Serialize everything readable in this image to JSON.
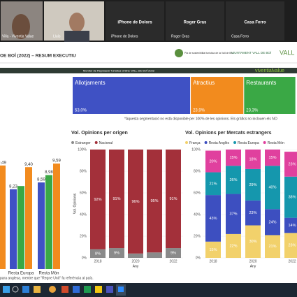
{
  "call": {
    "tiles": [
      {
        "label": "Villa - Viventia Value"
      },
      {
        "label": "Lluís"
      },
      {
        "name": "iPhone de Dolors",
        "label": "iPhone de Dolors"
      },
      {
        "name": "Roger Gras",
        "label": "Roger Gras"
      },
      {
        "name": "Casa Ferro",
        "label": "Casa Ferro"
      }
    ]
  },
  "report": {
    "title": "OE BOÍ (2022) – RESUM EXECUTIU",
    "logos": [
      "Pla de sostenibilitat turística de la Vall de Boí",
      "AJUNTAMENT VALL DE BOÍ",
      "VALL"
    ],
    "banner": "Monitor de Reputació Turística Online VALL DE BOÍ 2022",
    "brand": "viventialvalue",
    "note": "*Aquesta segmentació no està disponible per 100% de les opinions. Els gràfics no inclouen els NO",
    "footer_note": "para anglesa, mentre que \"Regne Unit\" fa referència al país."
  },
  "chart_data": [
    {
      "type": "treemap",
      "categories": [
        "Allotjaments",
        "Atractius",
        "Restaurants"
      ],
      "values": [
        53.0,
        23.9,
        23.3
      ],
      "value_labels": [
        "53,0%",
        "23,9%",
        "23,3%"
      ],
      "colors": [
        "#3f51c4",
        "#f28b1e",
        "#3aa845"
      ]
    },
    {
      "type": "grouped_bar",
      "categories": [
        null,
        "Resta Europa",
        "Resta Món"
      ],
      "ylim": [
        4,
        10
      ],
      "series": [
        {
          "color": "#3f51c4",
          "values": [
            null,
            8.23,
            8.59
          ],
          "value_labels": [
            null,
            "8,23",
            "8,59"
          ]
        },
        {
          "color": "#3aa845",
          "values": [
            null,
            8.4,
            8.98
          ],
          "value_labels": [
            null,
            null,
            "8,98"
          ]
        },
        {
          "color": "#f28b1e",
          "values": [
            9.49,
            9.4,
            9.59
          ],
          "value_labels": [
            "9,49",
            "9,40",
            "9,59"
          ]
        }
      ]
    },
    {
      "type": "stacked_bar",
      "title": "Vol. Opinions per origen",
      "y_label": "Vol. Opinions",
      "x_label": "Any",
      "categories": [
        "2018",
        null,
        "2020",
        null,
        "2022"
      ],
      "ylim": [
        0,
        100
      ],
      "yticks": [
        {
          "value": 0,
          "label": "0%"
        },
        {
          "value": 20,
          "label": "20%"
        },
        {
          "value": 40,
          "label": "40%"
        },
        {
          "value": 60,
          "label": "60%"
        },
        {
          "value": 80,
          "label": "80%"
        },
        {
          "value": 100,
          "label": "100%"
        }
      ],
      "series": [
        {
          "name": "Estranger",
          "color": "#8a8a8a",
          "values": [
            8,
            9,
            4,
            5,
            9
          ],
          "value_labels": [
            "8%",
            "9%",
            null,
            null,
            "9%"
          ]
        },
        {
          "name": "Nacional",
          "color": "#a3303a",
          "values": [
            92,
            91,
            96,
            95,
            91
          ],
          "value_labels": [
            "92%",
            "91%",
            "96%",
            "95%",
            "91%"
          ]
        }
      ]
    },
    {
      "type": "stacked_bar",
      "title": "Vol. Opinions per Mercats estrangers",
      "x_label": "Any",
      "categories": [
        "2018",
        null,
        "2020",
        null,
        "2022"
      ],
      "ylim": [
        0,
        100
      ],
      "yticks": [
        {
          "value": 0,
          "label": "0%"
        },
        {
          "value": 20,
          "label": "20%"
        },
        {
          "value": 40,
          "label": "40%"
        },
        {
          "value": 60,
          "label": "60%"
        },
        {
          "value": 80,
          "label": "80%"
        },
        {
          "value": 100,
          "label": "100%"
        }
      ],
      "series": [
        {
          "name": "França",
          "color": "#f2d16b",
          "values": [
            15,
            22,
            30,
            21,
            23
          ],
          "value_labels": [
            "15%",
            "22%",
            "30%",
            "21%",
            "23%"
          ]
        },
        {
          "name": "Resta Anglès",
          "color": "#3d4fc0",
          "values": [
            43,
            37,
            23,
            24,
            14
          ],
          "value_labels": [
            "43%",
            "37%",
            "23%",
            "24%",
            "14%"
          ]
        },
        {
          "name": "Resta Europa",
          "color": "#1597ad",
          "values": [
            21,
            26,
            29,
            40,
            38
          ],
          "value_labels": [
            "21%",
            "26%",
            "29%",
            "40%",
            "38%"
          ]
        },
        {
          "name": "Resta Món",
          "color": "#e0409e",
          "values": [
            20,
            15,
            18,
            15,
            23
          ],
          "value_labels": [
            "20%",
            "15%",
            "18%",
            "15%",
            "23%"
          ]
        }
      ]
    }
  ]
}
